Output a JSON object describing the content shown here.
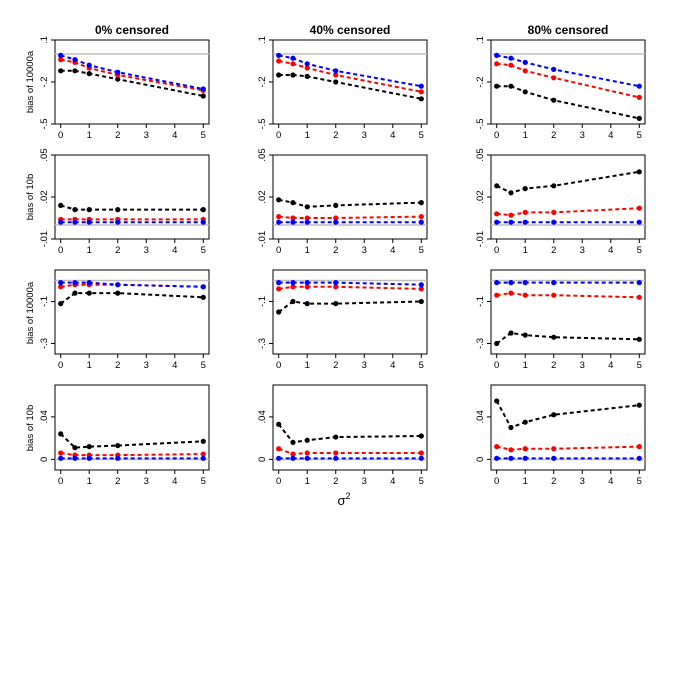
{
  "column_titles": [
    "0% censored",
    "40% censored",
    "80% censored"
  ],
  "row_ylabels": [
    "bias of 10000a",
    "bias of 10b",
    "bias of 10000a",
    "bias of 10b"
  ],
  "xlabel_base": "σ",
  "xlabel_exp": "2",
  "colors": {
    "black": "#000000",
    "red": "#ff0000",
    "blue": "#0000ff",
    "reference": "#bebebe"
  },
  "chart_data": [
    {
      "type": "line",
      "row": 0,
      "col": 0,
      "x": [
        0,
        0.5,
        1,
        2,
        5
      ],
      "xlim": [
        0,
        5
      ],
      "ylim": [
        -0.5,
        0.1
      ],
      "yticks": [
        -0.5,
        -0.2,
        0.1
      ],
      "xticks": [
        0,
        1,
        2,
        3,
        4,
        5
      ],
      "reference": 0,
      "series": [
        {
          "color": "black",
          "values": [
            -0.12,
            -0.12,
            -0.14,
            -0.18,
            -0.3
          ]
        },
        {
          "color": "red",
          "values": [
            -0.04,
            -0.06,
            -0.1,
            -0.15,
            -0.26
          ]
        },
        {
          "color": "blue",
          "values": [
            -0.01,
            -0.04,
            -0.08,
            -0.13,
            -0.25
          ]
        }
      ]
    },
    {
      "type": "line",
      "row": 0,
      "col": 1,
      "x": [
        0,
        0.5,
        1,
        2,
        5
      ],
      "xlim": [
        0,
        5
      ],
      "ylim": [
        -0.5,
        0.1
      ],
      "yticks": [
        -0.5,
        -0.2,
        0.1
      ],
      "xticks": [
        0,
        1,
        2,
        3,
        4,
        5
      ],
      "reference": 0,
      "series": [
        {
          "color": "black",
          "values": [
            -0.15,
            -0.15,
            -0.16,
            -0.2,
            -0.32
          ]
        },
        {
          "color": "red",
          "values": [
            -0.05,
            -0.07,
            -0.1,
            -0.15,
            -0.27
          ]
        },
        {
          "color": "blue",
          "values": [
            -0.01,
            -0.03,
            -0.07,
            -0.12,
            -0.23
          ]
        }
      ]
    },
    {
      "type": "line",
      "row": 0,
      "col": 2,
      "x": [
        0,
        0.5,
        1,
        2,
        5
      ],
      "xlim": [
        0,
        5
      ],
      "ylim": [
        -0.5,
        0.1
      ],
      "yticks": [
        -0.5,
        -0.2,
        0.1
      ],
      "xticks": [
        0,
        1,
        2,
        3,
        4,
        5
      ],
      "reference": 0,
      "series": [
        {
          "color": "black",
          "values": [
            -0.23,
            -0.23,
            -0.27,
            -0.33,
            -0.46
          ]
        },
        {
          "color": "red",
          "values": [
            -0.07,
            -0.08,
            -0.12,
            -0.17,
            -0.31
          ]
        },
        {
          "color": "blue",
          "values": [
            -0.01,
            -0.03,
            -0.06,
            -0.11,
            -0.23
          ]
        }
      ]
    },
    {
      "type": "line",
      "row": 1,
      "col": 0,
      "x": [
        0,
        0.5,
        1,
        2,
        5
      ],
      "xlim": [
        0,
        5
      ],
      "ylim": [
        -0.01,
        0.05
      ],
      "yticks": [
        -0.01,
        0.02,
        0.05
      ],
      "xticks": [
        0,
        1,
        2,
        3,
        4,
        5
      ],
      "reference": 0,
      "series": [
        {
          "color": "black",
          "values": [
            0.014,
            0.011,
            0.011,
            0.011,
            0.011
          ]
        },
        {
          "color": "red",
          "values": [
            0.004,
            0.004,
            0.004,
            0.004,
            0.004
          ]
        },
        {
          "color": "blue",
          "values": [
            0.002,
            0.002,
            0.002,
            0.002,
            0.002
          ]
        }
      ]
    },
    {
      "type": "line",
      "row": 1,
      "col": 1,
      "x": [
        0,
        0.5,
        1,
        2,
        5
      ],
      "xlim": [
        0,
        5
      ],
      "ylim": [
        -0.01,
        0.05
      ],
      "yticks": [
        -0.01,
        0.02,
        0.05
      ],
      "xticks": [
        0,
        1,
        2,
        3,
        4,
        5
      ],
      "reference": 0,
      "series": [
        {
          "color": "black",
          "values": [
            0.018,
            0.016,
            0.013,
            0.014,
            0.016
          ]
        },
        {
          "color": "red",
          "values": [
            0.006,
            0.005,
            0.005,
            0.005,
            0.006
          ]
        },
        {
          "color": "blue",
          "values": [
            0.002,
            0.002,
            0.002,
            0.002,
            0.002
          ]
        }
      ]
    },
    {
      "type": "line",
      "row": 1,
      "col": 2,
      "x": [
        0,
        0.5,
        1,
        2,
        5
      ],
      "xlim": [
        0,
        5
      ],
      "ylim": [
        -0.01,
        0.05
      ],
      "yticks": [
        -0.01,
        0.02,
        0.05
      ],
      "xticks": [
        0,
        1,
        2,
        3,
        4,
        5
      ],
      "reference": 0,
      "series": [
        {
          "color": "black",
          "values": [
            0.028,
            0.023,
            0.026,
            0.028,
            0.038
          ]
        },
        {
          "color": "red",
          "values": [
            0.008,
            0.007,
            0.009,
            0.009,
            0.012
          ]
        },
        {
          "color": "blue",
          "values": [
            0.002,
            0.002,
            0.002,
            0.002,
            0.002
          ]
        }
      ]
    },
    {
      "type": "line",
      "row": 2,
      "col": 0,
      "x": [
        0,
        0.5,
        1,
        2,
        5
      ],
      "xlim": [
        0,
        5
      ],
      "ylim": [
        -0.35,
        0.05
      ],
      "yticks": [
        -0.3,
        -0.1
      ],
      "xticks": [
        0,
        1,
        2,
        3,
        4,
        5
      ],
      "reference": 0,
      "series": [
        {
          "color": "black",
          "values": [
            -0.11,
            -0.06,
            -0.06,
            -0.06,
            -0.08
          ]
        },
        {
          "color": "red",
          "values": [
            -0.03,
            -0.02,
            -0.02,
            -0.02,
            -0.03
          ]
        },
        {
          "color": "blue",
          "values": [
            -0.01,
            -0.01,
            -0.01,
            -0.02,
            -0.03
          ]
        }
      ]
    },
    {
      "type": "line",
      "row": 2,
      "col": 1,
      "x": [
        0,
        0.5,
        1,
        2,
        5
      ],
      "xlim": [
        0,
        5
      ],
      "ylim": [
        -0.35,
        0.05
      ],
      "yticks": [
        -0.3,
        -0.1
      ],
      "xticks": [
        0,
        1,
        2,
        3,
        4,
        5
      ],
      "reference": 0,
      "series": [
        {
          "color": "black",
          "values": [
            -0.15,
            -0.1,
            -0.11,
            -0.11,
            -0.1
          ]
        },
        {
          "color": "red",
          "values": [
            -0.04,
            -0.03,
            -0.03,
            -0.03,
            -0.04
          ]
        },
        {
          "color": "blue",
          "values": [
            -0.01,
            -0.01,
            -0.01,
            -0.01,
            -0.02
          ]
        }
      ]
    },
    {
      "type": "line",
      "row": 2,
      "col": 2,
      "x": [
        0,
        0.5,
        1,
        2,
        5
      ],
      "xlim": [
        0,
        5
      ],
      "ylim": [
        -0.35,
        0.05
      ],
      "yticks": [
        -0.3,
        -0.1
      ],
      "xticks": [
        0,
        1,
        2,
        3,
        4,
        5
      ],
      "reference": 0,
      "series": [
        {
          "color": "black",
          "values": [
            -0.3,
            -0.25,
            -0.26,
            -0.27,
            -0.28
          ]
        },
        {
          "color": "red",
          "values": [
            -0.07,
            -0.06,
            -0.07,
            -0.07,
            -0.08
          ]
        },
        {
          "color": "blue",
          "values": [
            -0.01,
            -0.01,
            -0.01,
            -0.01,
            -0.01
          ]
        }
      ]
    },
    {
      "type": "line",
      "row": 3,
      "col": 0,
      "x": [
        0,
        0.5,
        1,
        2,
        5
      ],
      "xlim": [
        0,
        5
      ],
      "ylim": [
        -0.01,
        0.07
      ],
      "yticks": [
        0.0,
        0.04
      ],
      "xticks": [
        0,
        1,
        2,
        3,
        4,
        5
      ],
      "reference": 0,
      "series": [
        {
          "color": "black",
          "values": [
            0.024,
            0.011,
            0.012,
            0.013,
            0.017
          ]
        },
        {
          "color": "red",
          "values": [
            0.006,
            0.004,
            0.004,
            0.004,
            0.005
          ]
        },
        {
          "color": "blue",
          "values": [
            0.001,
            0.001,
            0.001,
            0.001,
            0.001
          ]
        }
      ]
    },
    {
      "type": "line",
      "row": 3,
      "col": 1,
      "x": [
        0,
        0.5,
        1,
        2,
        5
      ],
      "xlim": [
        0,
        5
      ],
      "ylim": [
        -0.01,
        0.07
      ],
      "yticks": [
        0.0,
        0.04
      ],
      "xticks": [
        0,
        1,
        2,
        3,
        4,
        5
      ],
      "reference": 0,
      "series": [
        {
          "color": "black",
          "values": [
            0.033,
            0.016,
            0.018,
            0.021,
            0.022
          ]
        },
        {
          "color": "red",
          "values": [
            0.01,
            0.005,
            0.006,
            0.006,
            0.006
          ]
        },
        {
          "color": "blue",
          "values": [
            0.001,
            0.001,
            0.001,
            0.001,
            0.001
          ]
        }
      ]
    },
    {
      "type": "line",
      "row": 3,
      "col": 2,
      "x": [
        0,
        0.5,
        1,
        2,
        5
      ],
      "xlim": [
        0,
        5
      ],
      "ylim": [
        -0.01,
        0.07
      ],
      "yticks": [
        0.0,
        0.04
      ],
      "xticks": [
        0,
        1,
        2,
        3,
        4,
        5
      ],
      "reference": 0,
      "series": [
        {
          "color": "black",
          "values": [
            0.055,
            0.03,
            0.035,
            0.042,
            0.051
          ]
        },
        {
          "color": "red",
          "values": [
            0.012,
            0.009,
            0.01,
            0.01,
            0.012
          ]
        },
        {
          "color": "blue",
          "values": [
            0.001,
            0.001,
            0.001,
            0.001,
            0.001
          ]
        }
      ]
    }
  ]
}
